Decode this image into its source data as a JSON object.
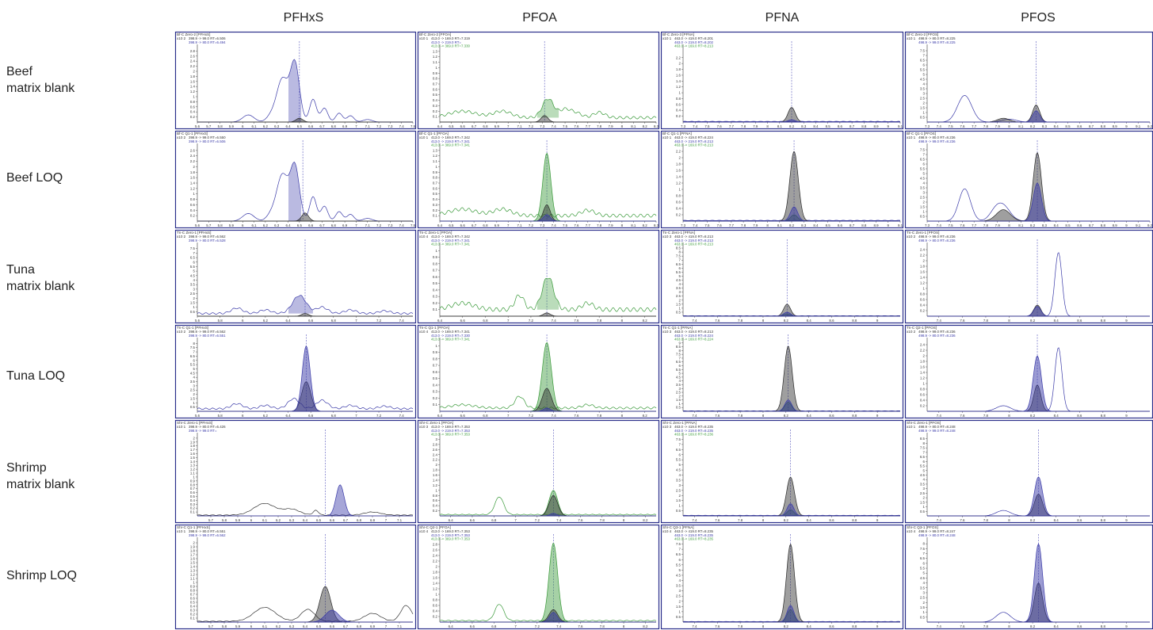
{
  "compounds": [
    "PFHxS",
    "PFOA",
    "PFNA",
    "PFOS"
  ],
  "samples": [
    "Beef\nmatrix blank",
    "Beef LOQ",
    "Tuna\nmatrix blank",
    "Tuna LOQ",
    "Shrimp\nmatrix blank",
    "Shrimp LOQ"
  ],
  "colors": {
    "panel_border": "#2a2f8a",
    "quant": "#2a2a2a",
    "qual1_blue": "#3a3aa8",
    "qual2_green": "#3a9a3a",
    "rt_line": "#5555bb"
  },
  "chart_data": [
    {
      "type": "line",
      "panel": "Beef matrix blank / PFHxS",
      "header": "Bf-C Zero-2 [PFHxS]",
      "exp": "x10 2",
      "traces": [
        "398.9 -> 99.0 RT=6.506",
        "398.9 -> 80.0 RT=6.494"
      ],
      "xlim": [
        5.6,
        7.5
      ],
      "xticks": [
        5.6,
        5.7,
        5.8,
        5.9,
        6,
        6.1,
        6.2,
        6.3,
        6.4,
        6.5,
        6.6,
        6.7,
        6.8,
        6.9,
        7,
        7.1,
        7.2,
        7.3,
        7.4,
        7.5
      ],
      "yticks": [
        0.2,
        0.4,
        0.6,
        0.8,
        1,
        1.2,
        1.4,
        1.6,
        1.8,
        2,
        2.2,
        2.4,
        2.6,
        2.8
      ],
      "ylim": [
        0,
        3.0
      ],
      "rt": 6.5
    },
    {
      "type": "line",
      "panel": "Beef matrix blank / PFOA",
      "header": "Bf-C Zero-2 [PFOA]",
      "exp": "x10 1",
      "traces": [
        "413.0 -> 169.0 RT=7.319",
        "413.0 -> 219.0 RT=",
        "413.0 -> 369.0 RT=7.330"
      ],
      "xlim": [
        6.4,
        8.3
      ],
      "xticks": [
        6.4,
        6.5,
        6.6,
        6.7,
        6.8,
        6.9,
        7,
        7.1,
        7.2,
        7.3,
        7.4,
        7.5,
        7.6,
        7.7,
        7.8,
        7.9,
        8,
        8.1,
        8.2,
        8.3
      ],
      "yticks": [
        0.1,
        0.2,
        0.3,
        0.4,
        0.5,
        0.6,
        0.7,
        0.8,
        0.9,
        1,
        1.1,
        1.2,
        1.3
      ],
      "ylim": [
        0,
        1.4
      ],
      "rt": 7.32
    },
    {
      "type": "line",
      "panel": "Beef matrix blank / PFNA",
      "header": "Bf-C Zero-3 [PFNA]",
      "exp": "x10 1",
      "traces": [
        "463.0 -> 419.0 RT=8.201",
        "463.0 -> 219.0 RT=8.202",
        "463.0 -> 169.0 RT=8.213"
      ],
      "xlim": [
        7.3,
        9.1
      ],
      "xticks": [
        7.3,
        7.4,
        7.5,
        7.6,
        7.7,
        7.8,
        7.9,
        8,
        8.1,
        8.2,
        8.3,
        8.4,
        8.5,
        8.6,
        8.7,
        8.8,
        8.9,
        9,
        9.1
      ],
      "yticks": [
        0.2,
        0.4,
        0.6,
        0.8,
        1,
        1.2,
        1.4,
        1.6,
        1.8,
        2,
        2.2
      ],
      "ylim": [
        0,
        2.6
      ],
      "rt": 8.2
    },
    {
      "type": "line",
      "panel": "Beef matrix blank / PFOS",
      "header": "Bf-C Zero-2 [PFOS]",
      "exp": "x10 1",
      "traces": [
        "498.9 -> 80.0 RT=8.225",
        "498.9 -> 99.0 RT=8.225"
      ],
      "xlim": [
        7.3,
        9.2
      ],
      "xticks": [
        7.3,
        7.4,
        7.5,
        7.6,
        7.7,
        7.8,
        7.9,
        8,
        8.1,
        8.2,
        8.3,
        8.4,
        8.5,
        8.6,
        8.7,
        8.8,
        8.9,
        9,
        9.1,
        9.2
      ],
      "yticks": [
        0.5,
        1,
        1.5,
        2,
        2.5,
        3,
        3.5,
        4,
        4.5,
        5,
        5.5,
        6,
        6.5,
        7,
        7.5
      ],
      "ylim": [
        0,
        8.0
      ],
      "rt": 8.23
    },
    {
      "type": "line",
      "panel": "Beef LOQ / PFHxS",
      "header": "Bf-C Q1-1 [PFHxS]",
      "exp": "x10 2",
      "traces": [
        "398.9 -> 99.0 RT=6.550",
        "398.9 -> 80.0 RT=6.506"
      ],
      "xlim": [
        5.6,
        7.5
      ],
      "xticks": [
        5.6,
        5.7,
        5.8,
        5.9,
        6,
        6.1,
        6.2,
        6.3,
        6.4,
        6.5,
        6.6,
        6.7,
        6.8,
        6.9,
        7,
        7.1,
        7.2,
        7.3,
        7.4,
        7.5
      ],
      "yticks": [
        0.2,
        0.4,
        0.6,
        0.8,
        1,
        1.2,
        1.4,
        1.6,
        1.8,
        2,
        2.2,
        2.4,
        2.6
      ],
      "ylim": [
        0,
        2.8
      ],
      "rt": 6.53
    },
    {
      "type": "line",
      "panel": "Beef LOQ / PFOA",
      "header": "Bf-C Q1-1 [PFOA]",
      "exp": "x10 1",
      "traces": [
        "413.0 -> 169.0 RT=7.342",
        "413.0 -> 219.0 RT=7.341",
        "413.0 -> 369.0 RT=7.341"
      ],
      "xlim": [
        6.4,
        8.3
      ],
      "xticks": [
        6.4,
        6.5,
        6.6,
        6.7,
        6.8,
        6.9,
        7,
        7.1,
        7.2,
        7.3,
        7.4,
        7.5,
        7.6,
        7.7,
        7.8,
        7.9,
        8,
        8.1,
        8.2,
        8.3
      ],
      "yticks": [
        0.1,
        0.2,
        0.3,
        0.4,
        0.5,
        0.6,
        0.7,
        0.8,
        0.9,
        1,
        1.1,
        1.2,
        1.3
      ],
      "ylim": [
        0,
        1.4
      ],
      "rt": 7.34
    },
    {
      "type": "line",
      "panel": "Beef LOQ / PFNA",
      "header": "Bf-C Q1-1 [PFNA]",
      "exp": "x10 1",
      "traces": [
        "463.0 -> 419.0 RT=8.224",
        "463.0 -> 219.0 RT=8.213",
        "463.0 -> 169.0 RT=8.213"
      ],
      "xlim": [
        7.3,
        9.1
      ],
      "xticks": [
        7.3,
        7.4,
        7.5,
        7.6,
        7.7,
        7.8,
        7.9,
        8,
        8.1,
        8.2,
        8.3,
        8.4,
        8.5,
        8.6,
        8.7,
        8.8,
        8.9,
        9,
        9.1
      ],
      "yticks": [
        0.2,
        0.4,
        0.6,
        0.8,
        1,
        1.2,
        1.4,
        1.6,
        1.8,
        2,
        2.2
      ],
      "ylim": [
        0,
        2.4
      ],
      "rt": 8.22
    },
    {
      "type": "line",
      "panel": "Beef LOQ / PFOS",
      "header": "Bf-C Q1-1 [PFOS]",
      "exp": "x10 1",
      "traces": [
        "498.9 -> 80.0 RT=8.236",
        "498.9 -> 99.0 RT=8.236"
      ],
      "xlim": [
        7.3,
        9.2
      ],
      "xticks": [
        7.3,
        7.4,
        7.5,
        7.6,
        7.7,
        7.8,
        7.9,
        8,
        8.1,
        8.2,
        8.3,
        8.4,
        8.5,
        8.6,
        8.7,
        8.8,
        8.9,
        9,
        9.1,
        9.2
      ],
      "yticks": [
        0.5,
        1,
        1.5,
        2,
        2.5,
        3,
        3.5,
        4,
        4.5,
        5,
        5.5,
        6,
        6.5,
        7,
        7.5
      ],
      "ylim": [
        0,
        8.0
      ],
      "rt": 8.24
    },
    {
      "type": "line",
      "panel": "Tuna matrix blank / PFHxS",
      "header": "Tn-C Zero-1 [PFHxS]",
      "exp": "x10 2",
      "traces": [
        "398.9 -> 99.0 RT=6.562",
        "398.9 -> 80.0 RT=6.528"
      ],
      "xlim": [
        5.6,
        7.5
      ],
      "xticks": [
        5.6,
        5.8,
        6,
        6.2,
        6.4,
        6.6,
        6.8,
        7,
        7.2,
        7.4
      ],
      "yticks": [
        0.5,
        1,
        1.5,
        2,
        2.5,
        3,
        3.5,
        4,
        4.5,
        5,
        5.5,
        6,
        6.5,
        7,
        7.5
      ],
      "ylim": [
        0,
        8.0
      ],
      "rt": 6.55
    },
    {
      "type": "line",
      "panel": "Tuna matrix blank / PFOA",
      "header": "Tn-C Zero-1 [PFOA]",
      "exp": "x10 4",
      "traces": [
        "413.0 -> 169.0 RT=7.342",
        "413.0 -> 219.0 RT=7.341",
        "413.0 -> 369.0 RT=7.341"
      ],
      "xlim": [
        6.4,
        8.3
      ],
      "xticks": [
        6.4,
        6.6,
        6.8,
        7,
        7.2,
        7.4,
        7.6,
        7.8,
        8,
        8.2
      ],
      "yticks": [
        0.1,
        0.2,
        0.3,
        0.4,
        0.5,
        0.6,
        0.7,
        0.8,
        0.9,
        1
      ],
      "ylim": [
        0,
        1.1
      ],
      "rt": 7.34
    },
    {
      "type": "line",
      "panel": "Tuna matrix blank / PFNA",
      "header": "Tn-C Zero-1 [PFNA]",
      "exp": "x10 3",
      "traces": [
        "463.0 -> 419.0 RT=8.213",
        "463.0 -> 219.0 RT=8.213",
        "463.0 -> 169.0 RT=8.213"
      ],
      "xlim": [
        7.3,
        9.2
      ],
      "xticks": [
        7.4,
        7.6,
        7.8,
        8,
        8.2,
        8.4,
        8.6,
        8.8,
        9
      ],
      "yticks": [
        0.5,
        1,
        1.5,
        2,
        2.5,
        3,
        3.5,
        4,
        4.5,
        5,
        5.5,
        6,
        6.5,
        7,
        7.5,
        8,
        8.5
      ],
      "ylim": [
        0,
        9.0
      ],
      "rt": 8.21
    },
    {
      "type": "line",
      "panel": "Tuna matrix blank / PFOS",
      "header": "Tn-C Zero-1 [PFOS]",
      "exp": "x10 2",
      "traces": [
        "498.9 -> 99.0 RT=8.236",
        "498.9 -> 80.0 RT=8.236"
      ],
      "xlim": [
        7.3,
        9.2
      ],
      "xticks": [
        7.4,
        7.6,
        7.8,
        8,
        8.2,
        8.4,
        8.6,
        8.8,
        9
      ],
      "yticks": [
        0.2,
        0.4,
        0.6,
        0.8,
        1,
        1.2,
        1.4,
        1.6,
        1.8,
        2,
        2.2,
        2.4
      ],
      "ylim": [
        0,
        2.6
      ],
      "rt": 8.24
    },
    {
      "type": "line",
      "panel": "Tuna LOQ / PFHxS",
      "header": "Tn-C Q1-1 [PFHxS]",
      "exp": "x10 2",
      "traces": [
        "398.9 -> 99.0 RT=6.562",
        "398.9 -> 80.0 RT=6.551"
      ],
      "xlim": [
        5.6,
        7.5
      ],
      "xticks": [
        5.6,
        5.8,
        6,
        6.2,
        6.4,
        6.6,
        6.8,
        7,
        7.2,
        7.4
      ],
      "yticks": [
        0.5,
        1,
        1.5,
        2,
        2.5,
        3,
        3.5,
        4,
        4.5,
        5,
        5.5,
        6,
        6.5,
        7,
        7.5,
        8
      ],
      "ylim": [
        0,
        8.5
      ],
      "rt": 6.56
    },
    {
      "type": "line",
      "panel": "Tuna LOQ / PFOA",
      "header": "Tn-C Q1-1 [PFOA]",
      "exp": "x10 4",
      "traces": [
        "413.0 -> 169.0 RT=7.341",
        "413.0 -> 219.0 RT=7.330",
        "413.0 -> 369.0 RT=7.341"
      ],
      "xlim": [
        6.4,
        8.3
      ],
      "xticks": [
        6.4,
        6.6,
        6.8,
        7,
        7.2,
        7.4,
        7.6,
        7.8,
        8,
        8.2
      ],
      "yticks": [
        0.1,
        0.2,
        0.3,
        0.4,
        0.5,
        0.6,
        0.7,
        0.8,
        0.9,
        1
      ],
      "ylim": [
        0,
        1.1
      ],
      "rt": 7.34
    },
    {
      "type": "line",
      "panel": "Tuna LOQ / PFNA",
      "header": "Tn-C Q1-1 [PFNA]",
      "exp": "x10 3",
      "traces": [
        "463.0 -> 419.0 RT=8.213",
        "463.0 -> 219.0 RT=8.224",
        "463.0 -> 169.0 RT=8.224"
      ],
      "xlim": [
        7.3,
        9.2
      ],
      "xticks": [
        7.4,
        7.6,
        7.8,
        8,
        8.2,
        8.4,
        8.6,
        8.8,
        9
      ],
      "yticks": [
        0.5,
        1,
        1.5,
        2,
        2.5,
        3,
        3.5,
        4,
        4.5,
        5,
        5.5,
        6,
        6.5,
        7,
        7.5,
        8,
        8.5,
        9
      ],
      "ylim": [
        0,
        9.5
      ],
      "rt": 8.22
    },
    {
      "type": "line",
      "panel": "Tuna LOQ / PFOS",
      "header": "Tn-C Q2-1 [PFOS]",
      "exp": "x10 2",
      "traces": [
        "498.9 -> 99.0 RT=8.236",
        "498.9 -> 80.0 RT=8.236"
      ],
      "xlim": [
        7.3,
        9.2
      ],
      "xticks": [
        7.4,
        7.6,
        7.8,
        8,
        8.2,
        8.4,
        8.6,
        8.8,
        9
      ],
      "yticks": [
        0.2,
        0.4,
        0.6,
        0.8,
        1,
        1.2,
        1.4,
        1.6,
        1.8,
        2,
        2.2,
        2.4
      ],
      "ylim": [
        0,
        2.6
      ],
      "rt": 8.24
    },
    {
      "type": "line",
      "panel": "Shrimp matrix blank / PFHxS",
      "header": "Shr-C Zero-1 [PFHxS]",
      "exp": "x10 1",
      "traces": [
        "398.9 -> 80.0 RT=6.426",
        "398.9 -> 99.0 RT="
      ],
      "xlim": [
        5.6,
        7.2
      ],
      "xticks": [
        5.7,
        5.8,
        5.9,
        6,
        6.1,
        6.2,
        6.3,
        6.4,
        6.5,
        6.6,
        6.7,
        6.8,
        6.9,
        7,
        7.1
      ],
      "yticks": [
        0.1,
        0.2,
        0.3,
        0.4,
        0.5,
        0.6,
        0.7,
        0.8,
        0.9,
        1,
        1.1,
        1.2,
        1.3,
        1.4,
        1.5,
        1.6,
        1.7,
        1.8,
        1.9,
        2
      ],
      "ylim": [
        0,
        2.1
      ],
      "rt": 6.55
    },
    {
      "type": "line",
      "panel": "Shrimp matrix blank / PFOA",
      "header": "Shr-C Zero-1 [PFOA]",
      "exp": "x10 3",
      "traces": [
        "413.0 -> 169.0 RT=7.353",
        "413.0 -> 219.0 RT=7.353",
        "413.0 -> 369.0 RT=7.353"
      ],
      "xlim": [
        6.3,
        8.3
      ],
      "xticks": [
        6.4,
        6.6,
        6.8,
        7,
        7.2,
        7.4,
        7.6,
        7.8,
        8,
        8.2
      ],
      "yticks": [
        0.2,
        0.4,
        0.6,
        0.8,
        1,
        1.2,
        1.4,
        1.6,
        1.8,
        2,
        2.2,
        2.4,
        2.6,
        2.8,
        3
      ],
      "ylim": [
        0,
        3.2
      ],
      "rt": 7.35
    },
    {
      "type": "line",
      "panel": "Shrimp matrix blank / PFNA",
      "header": "Shr-C Zero-1 [PFNA]",
      "exp": "x10 3",
      "traces": [
        "463.0 -> 419.0 RT=8.235",
        "463.0 -> 219.0 RT=8.235",
        "463.0 -> 169.0 RT=8.236"
      ],
      "xlim": [
        7.3,
        9.2
      ],
      "xticks": [
        7.4,
        7.6,
        7.8,
        8,
        8.2,
        8.4,
        8.6,
        8.8,
        9
      ],
      "yticks": [
        0.5,
        1,
        1.5,
        2,
        2.5,
        3,
        3.5,
        4,
        4.5,
        5,
        5.5,
        6,
        6.5,
        7,
        7.5
      ],
      "ylim": [
        0,
        8.0
      ],
      "rt": 8.24
    },
    {
      "type": "line",
      "panel": "Shrimp matrix blank / PFOS",
      "header": "Shr-C Zero-1 [PFOS]",
      "exp": "x10 1",
      "traces": [
        "498.9 -> 80.0 RT=8.248",
        "498.9 -> 99.0 RT=8.248"
      ],
      "xlim": [
        7.3,
        9.2
      ],
      "xticks": [
        7.4,
        7.6,
        7.8,
        8,
        8.2,
        8.4,
        8.6,
        8.8,
        9
      ],
      "yticks": [
        0.5,
        1,
        1.5,
        2,
        2.5,
        3,
        3.5,
        4,
        4.5,
        5,
        5.5,
        6,
        6.5,
        7,
        7.5,
        8,
        8.5
      ],
      "ylim": [
        0,
        9.0
      ],
      "rt": 8.25
    },
    {
      "type": "line",
      "panel": "Shrimp LOQ / PFHxS",
      "header": "Shr-C Q1-1 [PFHxS]",
      "exp": "x10 1",
      "traces": [
        "398.9 -> 80.0 RT=6.551",
        "398.9 -> 99.0 RT=6.562"
      ],
      "xlim": [
        5.6,
        7.2
      ],
      "xticks": [
        5.7,
        5.8,
        5.9,
        6,
        6.1,
        6.2,
        6.3,
        6.4,
        6.5,
        6.6,
        6.7,
        6.8,
        6.9,
        7,
        7.1
      ],
      "yticks": [
        0.1,
        0.2,
        0.3,
        0.4,
        0.5,
        0.6,
        0.7,
        0.8,
        0.9,
        1,
        1.1,
        1.2,
        1.3,
        1.4,
        1.5,
        1.6,
        1.7,
        1.8,
        1.9,
        2
      ],
      "ylim": [
        0,
        2.1
      ],
      "rt": 6.55
    },
    {
      "type": "line",
      "panel": "Shrimp LOQ / PFOA",
      "header": "Shr-C Q2-1 [PFOA]",
      "exp": "x10 4",
      "traces": [
        "413.0 -> 169.0 RT=7.353",
        "413.0 -> 219.0 RT=7.353",
        "413.0 -> 369.0 RT=7.353"
      ],
      "xlim": [
        6.3,
        8.3
      ],
      "xticks": [
        6.4,
        6.6,
        6.8,
        7,
        7.2,
        7.4,
        7.6,
        7.8,
        8,
        8.2
      ],
      "yticks": [
        0.2,
        0.4,
        0.6,
        0.8,
        1,
        1.2,
        1.4,
        1.6,
        1.8,
        2,
        2.2,
        2.4,
        2.6,
        2.8
      ],
      "ylim": [
        0,
        3.0
      ],
      "rt": 7.35
    },
    {
      "type": "line",
      "panel": "Shrimp LOQ / PFNA",
      "header": "Shr-C Q3-1 [PFNA]",
      "exp": "x10 4",
      "traces": [
        "463.0 -> 419.0 RT=8.235",
        "463.0 -> 219.0 RT=8.235",
        "463.0 -> 169.0 RT=8.235"
      ],
      "xlim": [
        7.3,
        9.2
      ],
      "xticks": [
        7.4,
        7.6,
        7.8,
        8,
        8.2,
        8.4,
        8.6,
        8.8,
        9
      ],
      "yticks": [
        0.5,
        1,
        1.5,
        2,
        2.5,
        3,
        3.5,
        4,
        4.5,
        5,
        5.5,
        6,
        6.5,
        7,
        7.5
      ],
      "ylim": [
        0,
        8.0
      ],
      "rt": 8.24
    },
    {
      "type": "line",
      "panel": "Shrimp LOQ / PFOS",
      "header": "Shr-C Q3-1 [PFOS]",
      "exp": "x10 4",
      "traces": [
        "498.9 -> 99.0 RT=8.247",
        "498.9 -> 80.0 RT=8.248"
      ],
      "xlim": [
        7.3,
        9.2
      ],
      "xticks": [
        7.4,
        7.6,
        7.8,
        8,
        8.2,
        8.4,
        8.6,
        8.8,
        9
      ],
      "yticks": [
        0.5,
        1,
        1.5,
        2,
        2.5,
        3,
        3.5,
        4,
        4.5,
        5,
        5.5,
        6,
        6.5,
        7,
        7.5,
        8
      ],
      "ylim": [
        0,
        8.5
      ],
      "rt": 8.25
    }
  ]
}
